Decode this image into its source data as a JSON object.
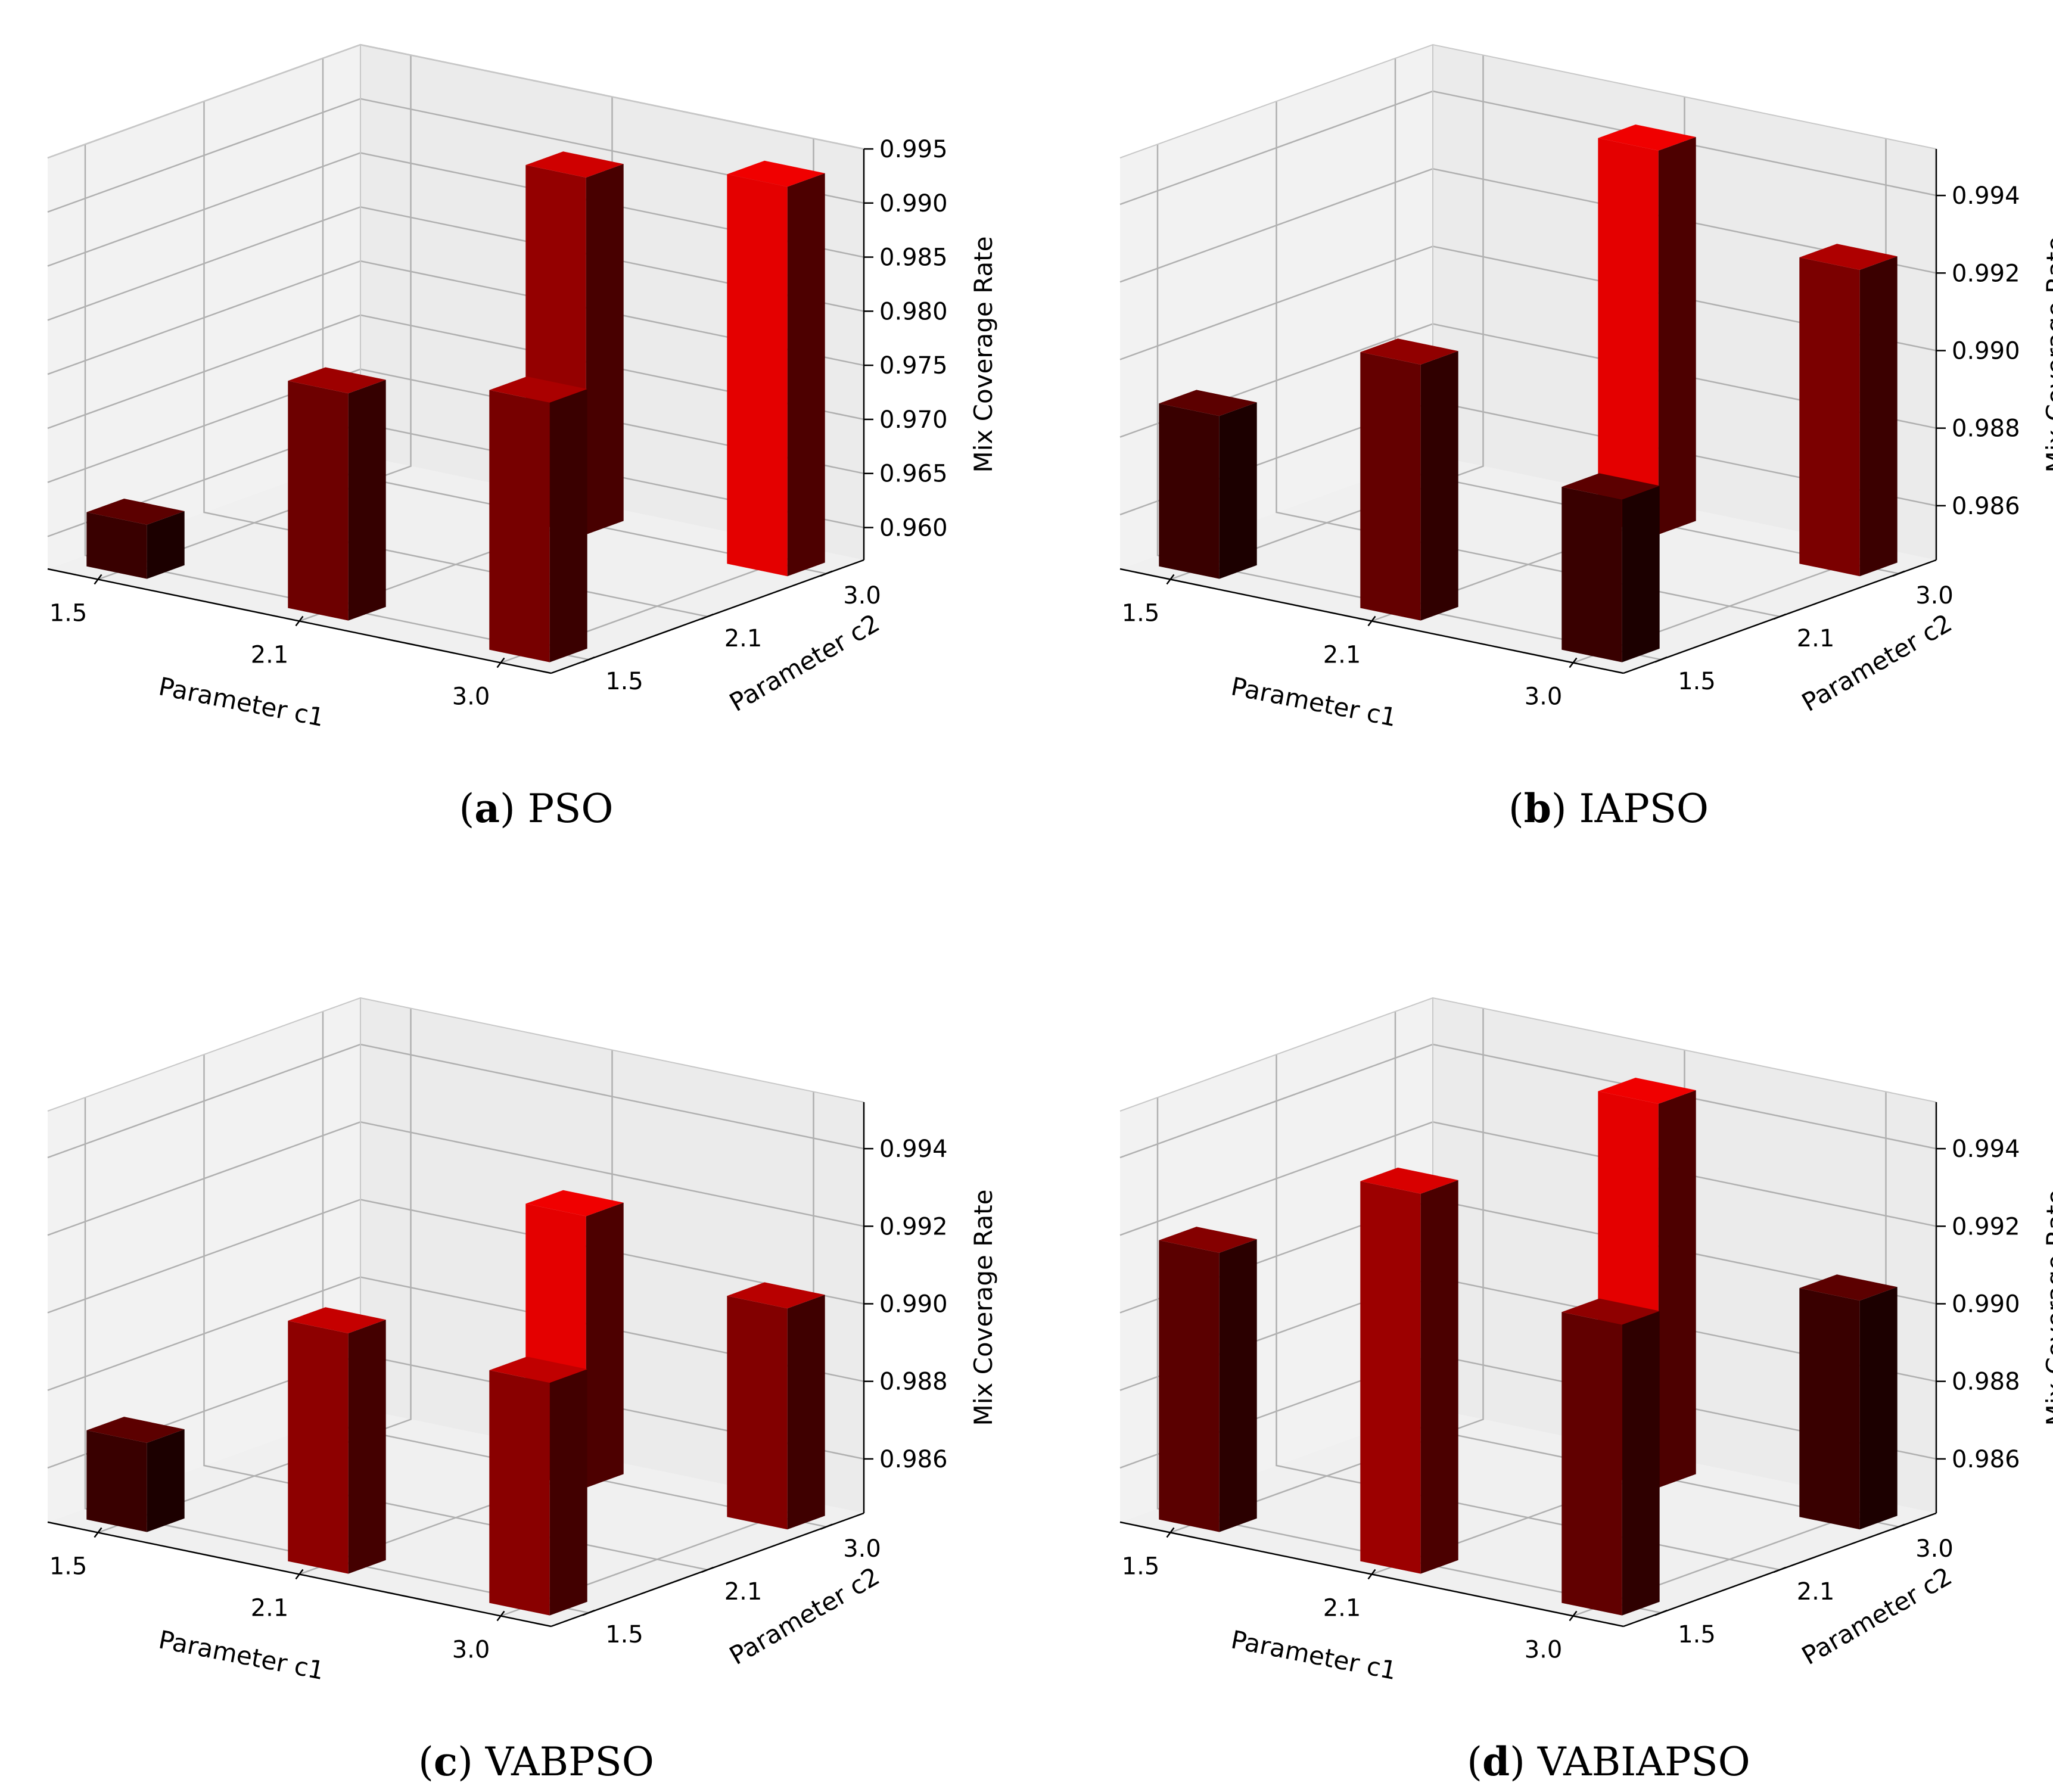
{
  "figure": {
    "captions": [
      {
        "label": "a",
        "text": "PSO"
      },
      {
        "label": "b",
        "text": "IAPSO"
      },
      {
        "label": "c",
        "text": "VABPSO"
      },
      {
        "label": "d",
        "text": "VABIAPSO"
      }
    ]
  },
  "chart_data": [
    {
      "type": "bar3d",
      "title": "PSO",
      "xlabel": "Parameter c1",
      "ylabel": "Parameter c2",
      "zlabel": "Mix Coverage Rate",
      "x_ticks": [
        "1.5",
        "2.1",
        "3.0"
      ],
      "y_ticks": [
        "1.5",
        "2.1",
        "3.0"
      ],
      "z_ticks": [
        "0.960",
        "0.965",
        "0.970",
        "0.975",
        "0.980",
        "0.985",
        "0.990",
        "0.995"
      ],
      "zlim": [
        0.957,
        0.995
      ],
      "bars": [
        {
          "c1": "1.5",
          "c2": "1.5",
          "value": 0.962
        },
        {
          "c1": "2.1",
          "c2": "1.5",
          "value": 0.978
        },
        {
          "c1": "3.0",
          "c2": "1.5",
          "value": 0.981
        },
        {
          "c1": "2.1",
          "c2": "3.0",
          "value": 0.99
        },
        {
          "c1": "3.0",
          "c2": "3.0",
          "value": 0.993
        }
      ]
    },
    {
      "type": "bar3d",
      "title": "IAPSO",
      "xlabel": "Parameter c1",
      "ylabel": "Parameter c2",
      "zlabel": "Mix Coverage Rate",
      "x_ticks": [
        "1.5",
        "2.1",
        "3.0"
      ],
      "y_ticks": [
        "1.5",
        "2.1",
        "3.0"
      ],
      "z_ticks": [
        "0.986",
        "0.988",
        "0.990",
        "0.992",
        "0.994"
      ],
      "zlim": [
        0.9846,
        0.9952
      ],
      "bars": [
        {
          "c1": "1.5",
          "c2": "1.5",
          "value": 0.9888
        },
        {
          "c1": "2.1",
          "c2": "1.5",
          "value": 0.9912
        },
        {
          "c1": "3.0",
          "c2": "1.5",
          "value": 0.9888
        },
        {
          "c1": "2.1",
          "c2": "3.0",
          "value": 0.9945
        },
        {
          "c1": "3.0",
          "c2": "3.0",
          "value": 0.9925
        }
      ]
    },
    {
      "type": "bar3d",
      "title": "VABPSO",
      "xlabel": "Parameter c1",
      "ylabel": "Parameter c2",
      "zlabel": "Mix Coverage Rate",
      "x_ticks": [
        "1.5",
        "2.1",
        "3.0"
      ],
      "y_ticks": [
        "1.5",
        "2.1",
        "3.0"
      ],
      "z_ticks": [
        "0.986",
        "0.988",
        "0.990",
        "0.992",
        "0.994"
      ],
      "zlim": [
        0.9846,
        0.9952
      ],
      "bars": [
        {
          "c1": "1.5",
          "c2": "1.5",
          "value": 0.9869
        },
        {
          "c1": "2.1",
          "c2": "1.5",
          "value": 0.9908
        },
        {
          "c1": "3.0",
          "c2": "1.5",
          "value": 0.9906
        },
        {
          "c1": "2.1",
          "c2": "3.0",
          "value": 0.9916
        },
        {
          "c1": "3.0",
          "c2": "3.0",
          "value": 0.9903
        }
      ]
    },
    {
      "type": "bar3d",
      "title": "VABIAPSO",
      "xlabel": "Parameter c1",
      "ylabel": "Parameter c2",
      "zlabel": "Mix Coverage Rate",
      "x_ticks": [
        "1.5",
        "2.1",
        "3.0"
      ],
      "y_ticks": [
        "1.5",
        "2.1",
        "3.0"
      ],
      "z_ticks": [
        "0.986",
        "0.988",
        "0.990",
        "0.992",
        "0.994"
      ],
      "zlim": [
        0.9846,
        0.9952
      ],
      "bars": [
        {
          "c1": "1.5",
          "c2": "1.5",
          "value": 0.9918
        },
        {
          "c1": "2.1",
          "c2": "1.5",
          "value": 0.9944
        },
        {
          "c1": "3.0",
          "c2": "1.5",
          "value": 0.9921
        },
        {
          "c1": "2.1",
          "c2": "3.0",
          "value": 0.9945
        },
        {
          "c1": "3.0",
          "c2": "3.0",
          "value": 0.9905
        }
      ]
    }
  ]
}
